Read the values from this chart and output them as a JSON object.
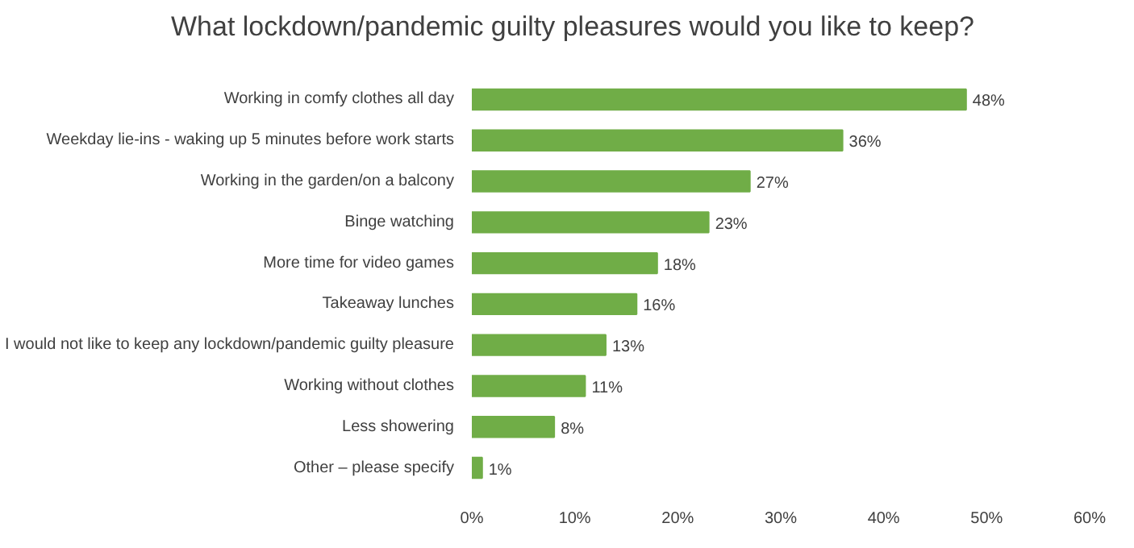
{
  "chart_data": {
    "type": "bar",
    "orientation": "horizontal",
    "title": "What lockdown/pandemic guilty pleasures would you like to keep?",
    "categories": [
      "Working in comfy clothes all day",
      "Weekday lie-ins - waking up 5 minutes before work starts",
      "Working in the garden/on a balcony",
      "Binge watching",
      "More time for video games",
      "Takeaway lunches",
      "I would not like to keep any lockdown/pandemic guilty pleasure",
      "Working without clothes",
      "Less showering",
      "Other – please specify"
    ],
    "values": [
      48,
      36,
      27,
      23,
      18,
      16,
      13,
      11,
      8,
      1
    ],
    "value_labels": [
      "48%",
      "36%",
      "27%",
      "23%",
      "18%",
      "16%",
      "13%",
      "11%",
      "8%",
      "1%"
    ],
    "color": "#70ad47",
    "xlim": [
      0,
      60
    ],
    "xticks": [
      {
        "value": 0,
        "label": "0%"
      },
      {
        "value": 10,
        "label": "10%"
      },
      {
        "value": 20,
        "label": "20%"
      },
      {
        "value": 30,
        "label": "30%"
      },
      {
        "value": 40,
        "label": "40%"
      },
      {
        "value": 50,
        "label": "50%"
      },
      {
        "value": 60,
        "label": "60%"
      }
    ],
    "grid": false
  }
}
